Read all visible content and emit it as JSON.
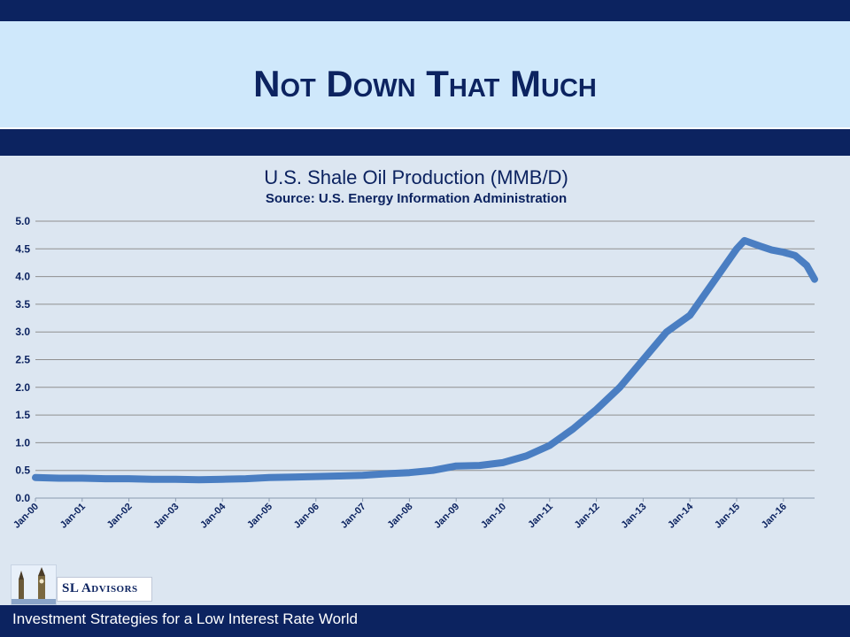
{
  "slide": {
    "title": "Not Down That Much",
    "footer": "Investment Strategies for a Low Interest Rate World",
    "logo_text": "SL Advisors"
  },
  "colors": {
    "navy": "#0c2360",
    "title_band": "#cfe8fb",
    "background": "#dce6f1",
    "series": "#4a7ec2"
  },
  "chart_data": {
    "type": "line",
    "title": "U.S. Shale Oil Production (MMB/D)",
    "subtitle": "Source: U.S. Energy Information Administration",
    "xlabel": "",
    "ylabel": "",
    "ylim": [
      0,
      5
    ],
    "yticks": [
      "0.0",
      "0.5",
      "1.0",
      "1.5",
      "2.0",
      "2.5",
      "3.0",
      "3.5",
      "4.0",
      "4.5",
      "5.0"
    ],
    "x_tick_labels": [
      "Jan-00",
      "Jan-01",
      "Jan-02",
      "Jan-03",
      "Jan-04",
      "Jan-05",
      "Jan-06",
      "Jan-07",
      "Jan-08",
      "Jan-09",
      "Jan-10",
      "Jan-11",
      "Jan-12",
      "Jan-13",
      "Jan-14",
      "Jan-15",
      "Jan-16"
    ],
    "grid": true,
    "legend": "none",
    "series": [
      {
        "x": [
          "Jan-00",
          "Jul-00",
          "Jan-01",
          "Jul-01",
          "Jan-02",
          "Jul-02",
          "Jan-03",
          "Jul-03",
          "Jan-04",
          "Jul-04",
          "Jan-05",
          "Jul-05",
          "Jan-06",
          "Jul-06",
          "Jan-07",
          "Jul-07",
          "Jan-08",
          "Jul-08",
          "Jan-09",
          "Jul-09",
          "Jan-10",
          "Jul-10",
          "Jan-11",
          "Jul-11",
          "Jan-12",
          "Jul-12",
          "Jan-13",
          "Jul-13",
          "Jan-14",
          "Jul-14",
          "Jan-15",
          "Mar-15",
          "Jul-15",
          "Oct-15",
          "Jan-16",
          "Apr-16",
          "Jul-16",
          "Sep-16"
        ],
        "values": [
          0.37,
          0.36,
          0.36,
          0.35,
          0.35,
          0.34,
          0.34,
          0.33,
          0.34,
          0.35,
          0.37,
          0.38,
          0.39,
          0.4,
          0.41,
          0.44,
          0.46,
          0.5,
          0.58,
          0.59,
          0.64,
          0.76,
          0.95,
          1.25,
          1.6,
          2.0,
          2.5,
          3.0,
          3.3,
          3.9,
          4.5,
          4.65,
          4.55,
          4.48,
          4.44,
          4.38,
          4.2,
          3.95
        ]
      }
    ]
  }
}
